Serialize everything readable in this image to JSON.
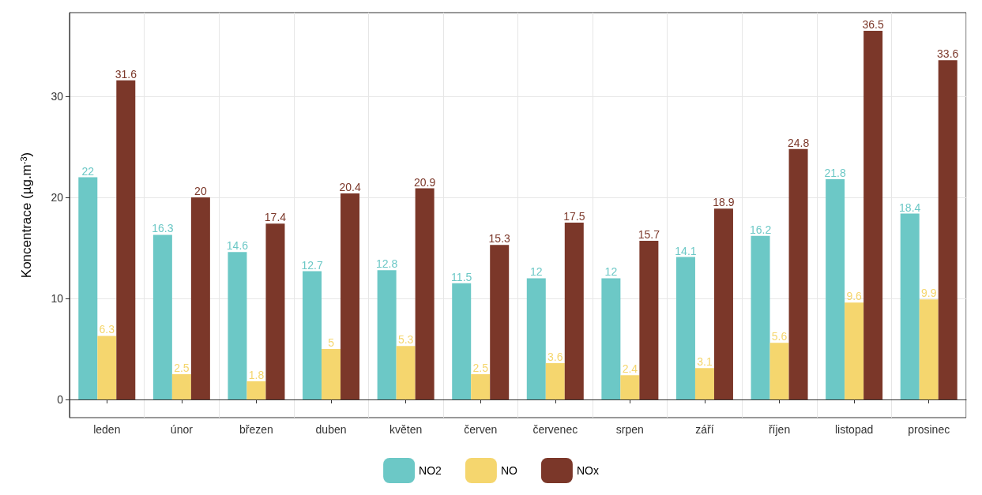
{
  "chart_data": {
    "type": "bar",
    "ylabel": "Koncentrace (µg.m$^{-3}$)",
    "categories": [
      "leden",
      "únor",
      "březen",
      "duben",
      "květen",
      "červen",
      "červenec",
      "srpen",
      "září",
      "říjen",
      "listopad",
      "prosinec"
    ],
    "series": [
      {
        "name": "NO2",
        "color": "#6cc8c6",
        "values": [
          22,
          16.3,
          14.6,
          12.7,
          12.8,
          11.5,
          12,
          12,
          14.1,
          16.2,
          21.8,
          18.4
        ]
      },
      {
        "name": "NO",
        "color": "#f5d66e",
        "values": [
          6.3,
          2.5,
          1.8,
          5,
          5.3,
          2.5,
          3.6,
          2.4,
          3.1,
          5.6,
          9.6,
          9.9
        ]
      },
      {
        "name": "NOx",
        "color": "#7b3729",
        "values": [
          31.6,
          20,
          17.4,
          20.4,
          20.9,
          15.3,
          17.5,
          15.7,
          18.9,
          24.8,
          36.5,
          33.6
        ]
      }
    ],
    "ylim": [
      -1.8,
      38.3
    ],
    "yticks": [
      0,
      10,
      20,
      30
    ],
    "grid": true,
    "legend": "bottom",
    "data_labels": true
  }
}
